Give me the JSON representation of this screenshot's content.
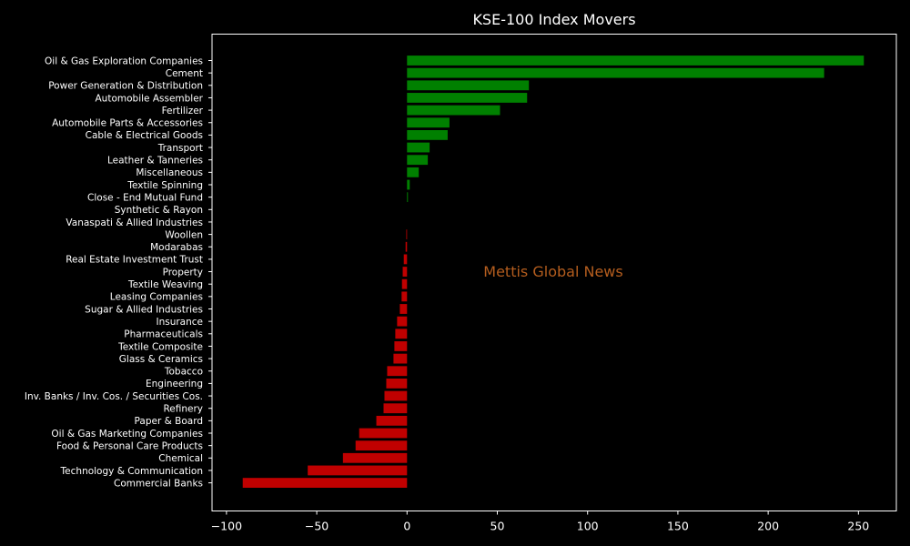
{
  "chart_data": {
    "type": "bar",
    "orientation": "horizontal",
    "title": "KSE-100 Index Movers",
    "xlabel": "",
    "ylabel": "",
    "xlim": [
      -108,
      271
    ],
    "xticks": [
      -100,
      -50,
      0,
      50,
      100,
      150,
      200,
      250
    ],
    "xtick_labels": [
      "−100",
      "−50",
      "0",
      "50",
      "100",
      "150",
      "200",
      "250"
    ],
    "grid": false,
    "categories": [
      "Oil & Gas Exploration Companies",
      "Cement",
      "Power Generation & Distribution",
      "Automobile Assembler",
      "Fertilizer",
      "Automobile Parts & Accessories",
      "Cable & Electrical Goods",
      "Transport",
      "Leather & Tanneries",
      "Miscellaneous",
      "Textile Spinning",
      "Close - End Mutual Fund",
      "Synthetic & Rayon",
      "Vanaspati & Allied Industries",
      "Woollen",
      "Modarabas",
      "Real Estate Investment Trust",
      "Property",
      "Textile Weaving",
      "Leasing Companies",
      "Sugar & Allied Industries",
      "Insurance",
      "Pharmaceuticals",
      "Textile Composite",
      "Glass & Ceramics",
      "Tobacco",
      "Engineering",
      "Inv. Banks / Inv. Cos. / Securities Cos.",
      "Refinery",
      "Paper & Board",
      "Oil & Gas Marketing Companies",
      "Food & Personal Care Products",
      "Chemical",
      "Technology & Communication",
      "Commercial Banks"
    ],
    "values": [
      253,
      231,
      67.5,
      66.5,
      51.5,
      23.5,
      22.5,
      12.5,
      11.5,
      6.5,
      1.5,
      0.5,
      0,
      0,
      -0.4,
      -0.8,
      -1.8,
      -2.4,
      -2.8,
      -3.0,
      -4.0,
      -5.5,
      -6.5,
      -7.0,
      -7.5,
      -11,
      -11.5,
      -12.5,
      -13,
      -17,
      -26.5,
      -28.5,
      -35.5,
      -55,
      -91
    ],
    "colors": {
      "positive": "#008000",
      "negative": "#c00000"
    }
  },
  "watermark": {
    "text": "Mettis Global News",
    "color": "#b45d1e"
  }
}
